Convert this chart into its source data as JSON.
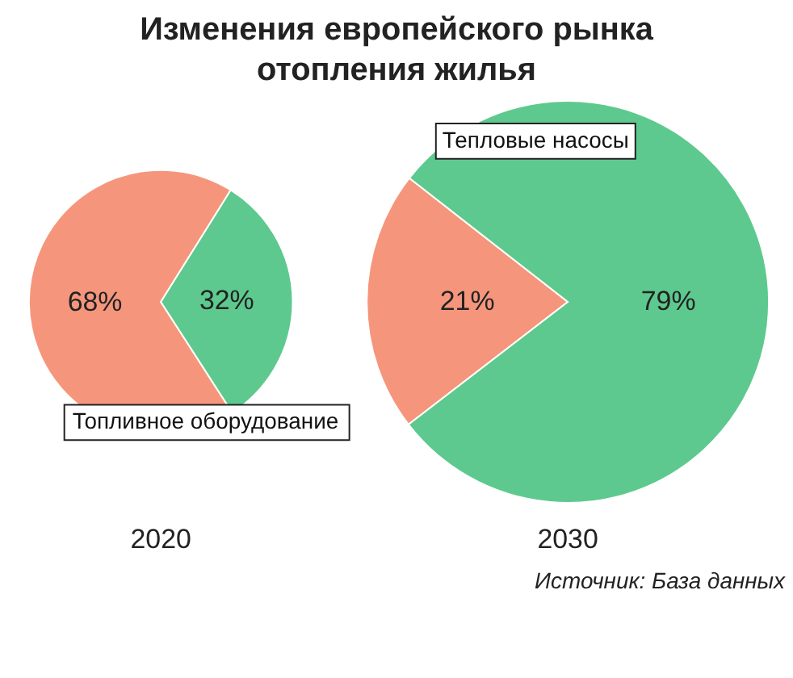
{
  "chart_data": [
    {
      "type": "pie",
      "title": "Изменения европейского рынка отопления жилья",
      "xlabel": "2020",
      "categories": [
        "Топливное оборудование",
        null
      ],
      "values": [
        68,
        32
      ],
      "value_labels": [
        "68%",
        "32%"
      ],
      "colors": [
        "#f5967c",
        "#5dc98e"
      ]
    },
    {
      "type": "pie",
      "xlabel": "2030",
      "categories": [
        null,
        "Тепловые насосы"
      ],
      "values": [
        21,
        79
      ],
      "value_labels": [
        "21%",
        "79%"
      ],
      "colors": [
        "#f5967c",
        "#5dc98e"
      ],
      "annotations": [
        "Источник: База данных"
      ]
    }
  ]
}
